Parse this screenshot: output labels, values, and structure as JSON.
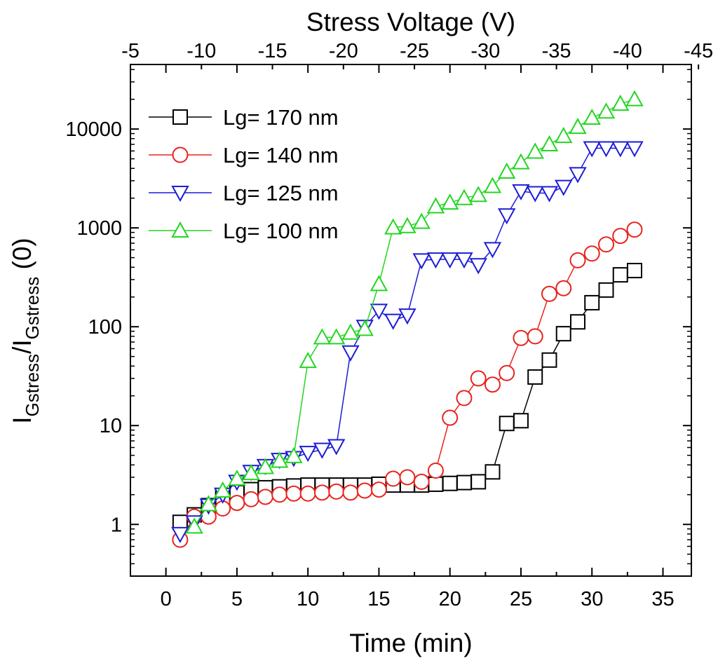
{
  "chart_data": {
    "type": "scatter",
    "title": "",
    "xlabel": "Time (min)",
    "ylabel_main": "I",
    "ylabel_sub1": "Gstress",
    "ylabel_mid": "/I",
    "ylabel_sub2": "Gstress",
    "ylabel_tail": " (0)",
    "top_xlabel": "Stress Voltage (V)",
    "xlim": [
      -2.5,
      37
    ],
    "ylim": [
      0.3,
      45000
    ],
    "yscale": "log",
    "x_ticks": [
      0,
      5,
      10,
      15,
      20,
      25,
      30,
      35
    ],
    "x_tick_labels": [
      "0",
      "5",
      "10",
      "15",
      "20",
      "25",
      "30",
      "35"
    ],
    "y_ticks": [
      1,
      10,
      100,
      1000,
      10000
    ],
    "y_tick_labels": [
      "1",
      "10",
      "100",
      "1000",
      "10000"
    ],
    "top_ticks_at_time": [
      -2.5,
      2.5,
      7.5,
      12.5,
      17.5,
      22.5,
      27.5,
      32.5,
      37.5
    ],
    "top_tick_labels": [
      "-5",
      "-10",
      "-15",
      "-20",
      "-25",
      "-30",
      "-35",
      "-40",
      "-45"
    ],
    "legend_position": "top-left",
    "series": [
      {
        "name": "Lg= 170 nm",
        "color": "#000000",
        "marker": "square",
        "x": [
          1,
          2,
          3,
          4,
          5,
          6,
          7,
          8,
          9,
          10,
          11,
          12,
          13,
          14,
          15,
          16,
          17,
          18,
          19,
          20,
          21,
          22,
          23,
          24,
          25,
          26,
          27,
          28,
          29,
          30,
          31,
          32,
          33
        ],
        "y": [
          1.05,
          1.25,
          1.55,
          1.9,
          2.1,
          2.25,
          2.35,
          2.4,
          2.45,
          2.5,
          2.5,
          2.5,
          2.5,
          2.5,
          2.55,
          2.5,
          2.5,
          2.5,
          2.55,
          2.6,
          2.65,
          2.7,
          3.4,
          10.5,
          11.2,
          31,
          46,
          85,
          112,
          175,
          235,
          335,
          370
        ]
      },
      {
        "name": "Lg= 140 nm",
        "color": "#e8231e",
        "marker": "circle",
        "x": [
          1,
          2,
          3,
          4,
          5,
          6,
          7,
          8,
          9,
          10,
          11,
          12,
          13,
          14,
          15,
          16,
          17,
          18,
          19,
          20,
          21,
          22,
          23,
          24,
          25,
          26,
          27,
          28,
          29,
          30,
          31,
          32,
          33
        ],
        "y": [
          0.7,
          1.2,
          1.2,
          1.45,
          1.65,
          1.8,
          1.9,
          2.0,
          2.05,
          2.05,
          2.1,
          2.15,
          2.1,
          2.2,
          2.25,
          2.9,
          3.0,
          2.7,
          3.5,
          12,
          19,
          30,
          26,
          34,
          77,
          80,
          215,
          245,
          470,
          550,
          680,
          830,
          960
        ]
      },
      {
        "name": "Lg= 125 nm",
        "color": "#1c1cd6",
        "marker": "triangle-down",
        "x": [
          1,
          2,
          3,
          4,
          5,
          6,
          7,
          8,
          9,
          10,
          11,
          12,
          13,
          14,
          15,
          16,
          17,
          18,
          19,
          20,
          21,
          22,
          23,
          24,
          25,
          26,
          27,
          28,
          29,
          30,
          31,
          32,
          33
        ],
        "y": [
          0.8,
          1.05,
          1.55,
          2.0,
          2.7,
          3.4,
          3.9,
          4.5,
          4.7,
          5.3,
          5.7,
          6.2,
          55,
          100,
          145,
          115,
          130,
          470,
          480,
          480,
          480,
          420,
          610,
          1340,
          2350,
          2250,
          2250,
          2600,
          3500,
          6400,
          6400,
          6400,
          6400
        ]
      },
      {
        "name": "Lg= 100 nm",
        "color": "#22d622",
        "marker": "triangle-up",
        "x": [
          2,
          3,
          4,
          5,
          6,
          7,
          8,
          9,
          10,
          11,
          12,
          13,
          14,
          15,
          16,
          17,
          18,
          19,
          20,
          21,
          22,
          23,
          24,
          25,
          26,
          27,
          28,
          29,
          30,
          31,
          32,
          33
        ],
        "y": [
          0.95,
          1.6,
          2.2,
          2.9,
          3.3,
          3.8,
          4.4,
          4.9,
          45,
          78,
          78,
          87,
          95,
          270,
          1010,
          1040,
          1150,
          1650,
          1800,
          2000,
          2150,
          2650,
          3700,
          4600,
          5900,
          7000,
          8500,
          10500,
          13000,
          15000,
          18000,
          20000
        ]
      }
    ]
  }
}
